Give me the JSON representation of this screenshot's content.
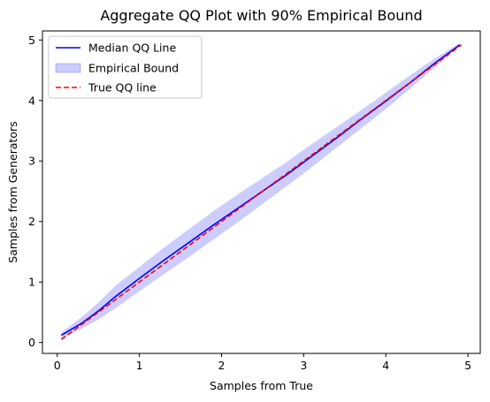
{
  "chart_data": {
    "type": "line",
    "title": "Aggregate QQ Plot with 90% Empirical Bound",
    "xlabel": "Samples from True",
    "ylabel": "Samples from Generators",
    "xlim": [
      -0.18,
      5.15
    ],
    "ylim": [
      -0.18,
      5.15
    ],
    "xticks": [
      "0",
      "1",
      "2",
      "3",
      "4",
      "5"
    ],
    "yticks": [
      "0",
      "1",
      "2",
      "3",
      "4",
      "5"
    ],
    "grid": false,
    "legend_position": "top-left",
    "legend": [
      "Median QQ Line",
      "Empirical Bound",
      "True QQ line"
    ],
    "series": [
      {
        "name": "Median QQ Line",
        "style": "solid",
        "color": "#0000ff",
        "x": [
          0.05,
          0.15,
          0.3,
          0.5,
          0.7,
          1.0,
          1.3,
          1.6,
          1.9,
          2.2,
          2.5,
          2.8,
          3.1,
          3.4,
          3.7,
          4.0,
          4.3,
          4.6,
          4.9
        ],
        "y": [
          0.12,
          0.2,
          0.32,
          0.52,
          0.75,
          1.06,
          1.36,
          1.65,
          1.94,
          2.22,
          2.5,
          2.78,
          3.08,
          3.38,
          3.69,
          3.99,
          4.3,
          4.62,
          4.92
        ]
      },
      {
        "name": "Empirical Bound",
        "style": "band",
        "color": "#0000ff",
        "x": [
          0.05,
          0.15,
          0.3,
          0.5,
          0.7,
          1.0,
          1.3,
          1.6,
          1.9,
          2.2,
          2.5,
          2.8,
          3.1,
          3.4,
          3.7,
          4.0,
          4.3,
          4.6,
          4.9
        ],
        "lower": [
          0.06,
          0.13,
          0.23,
          0.38,
          0.56,
          0.85,
          1.13,
          1.41,
          1.7,
          1.99,
          2.29,
          2.59,
          2.9,
          3.22,
          3.54,
          3.86,
          4.2,
          4.55,
          4.9
        ],
        "upper": [
          0.16,
          0.27,
          0.42,
          0.66,
          0.93,
          1.25,
          1.57,
          1.87,
          2.17,
          2.45,
          2.72,
          2.99,
          3.28,
          3.56,
          3.84,
          4.13,
          4.42,
          4.7,
          4.95
        ]
      },
      {
        "name": "True QQ line",
        "style": "dashed",
        "color": "#ff0000",
        "x": [
          0.05,
          4.92
        ],
        "y": [
          0.05,
          4.92
        ]
      }
    ]
  }
}
